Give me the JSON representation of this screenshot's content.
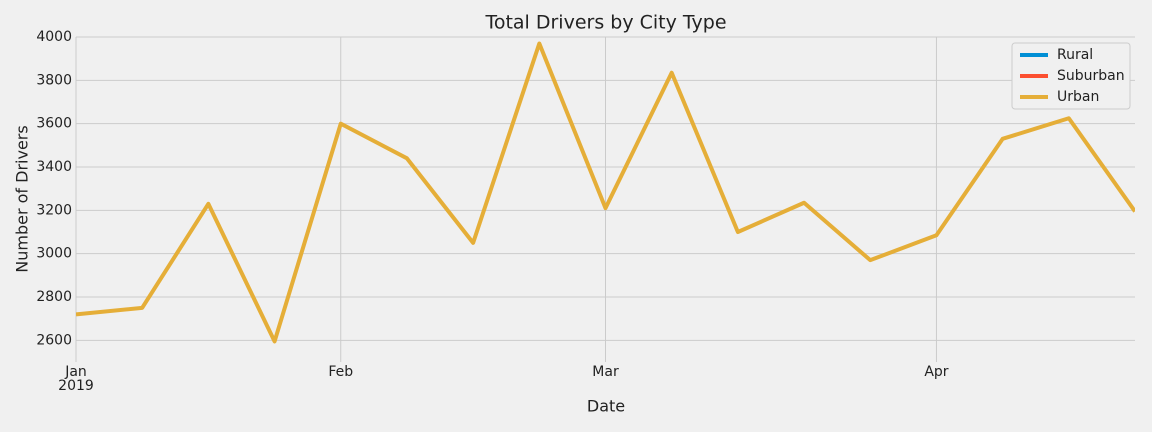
{
  "chart_data": {
    "type": "line",
    "title": "Total Drivers by City Type",
    "x_label": "Date",
    "y_label": "Number of Drivers",
    "categories": [
      "Jan",
      null,
      null,
      null,
      "Feb",
      null,
      null,
      null,
      "Mar",
      null,
      null,
      null,
      null,
      "Apr",
      null,
      null,
      null
    ],
    "year": "2019",
    "series": [
      {
        "name": "Rural",
        "color": "#008fd5",
        "values": [
          null,
          null,
          null,
          null,
          null,
          null,
          null,
          null,
          null,
          null,
          null,
          null,
          null,
          null,
          null,
          null,
          null
        ]
      },
      {
        "name": "Suburban",
        "color": "#fc4f30",
        "values": [
          null,
          null,
          null,
          null,
          null,
          null,
          null,
          null,
          null,
          null,
          null,
          null,
          null,
          null,
          null,
          null,
          null
        ]
      },
      {
        "name": "Urban",
        "color": "#e5ae38",
        "values": [
          2720,
          2750,
          3230,
          2595,
          3600,
          3440,
          3050,
          3970,
          3210,
          3835,
          3100,
          3235,
          2970,
          3085,
          3530,
          3625,
          3195
        ]
      }
    ],
    "ylim": [
      2500,
      4000
    ],
    "yticks": [
      2600,
      2800,
      3000,
      3200,
      3400,
      3600,
      3800,
      4000
    ],
    "grid": true,
    "legend": "upper right"
  }
}
